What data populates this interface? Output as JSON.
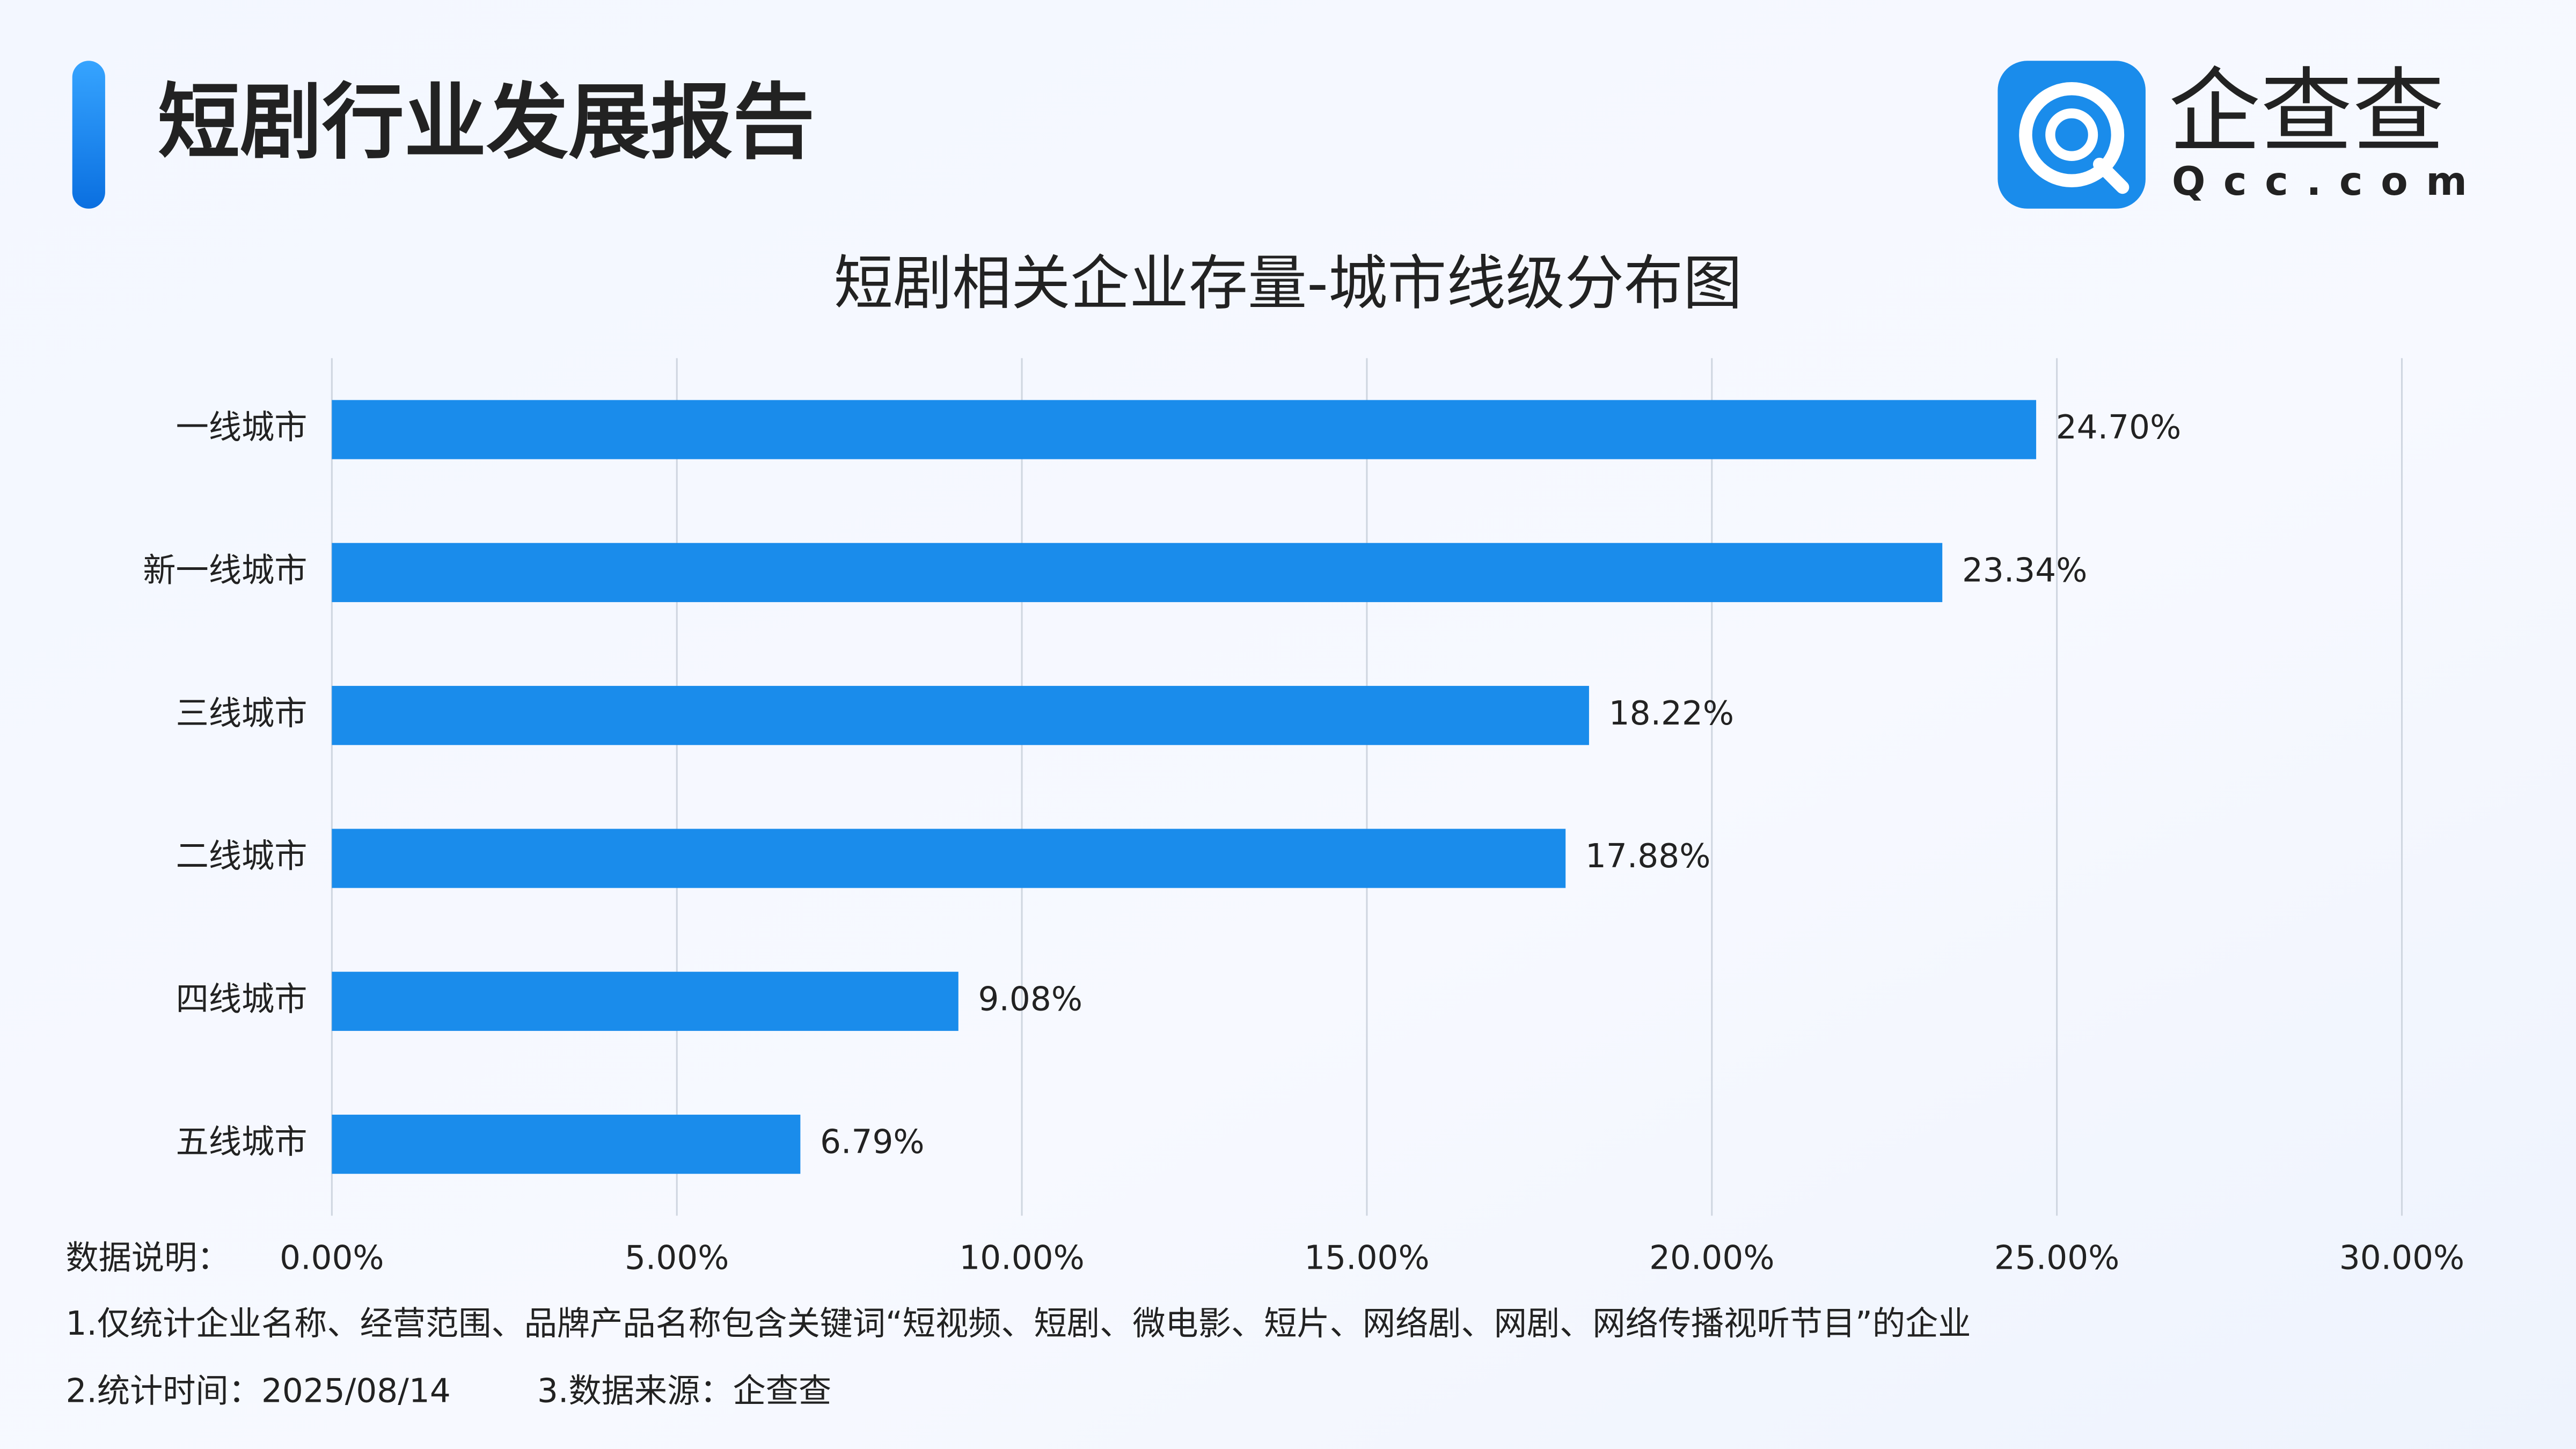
{
  "header": {
    "title": "短剧行业发展报告",
    "logo_text": "企查查",
    "logo_sub": "Qcc.com"
  },
  "chart_data": {
    "type": "bar",
    "orientation": "horizontal",
    "title": "短剧相关企业存量-城市线级分布图",
    "categories": [
      "一线城市",
      "新一线城市",
      "三线城市",
      "二线城市",
      "四线城市",
      "五线城市"
    ],
    "values": [
      24.7,
      23.34,
      18.22,
      17.88,
      9.08,
      6.79
    ],
    "value_labels": [
      "24.70%",
      "23.34%",
      "18.22%",
      "17.88%",
      "9.08%",
      "6.79%"
    ],
    "color": "#1a8ceb",
    "xlim": [
      0,
      30
    ],
    "xticks": [
      {
        "value": 0,
        "label": "0.00%"
      },
      {
        "value": 5,
        "label": "5.00%"
      },
      {
        "value": 10,
        "label": "10.00%"
      },
      {
        "value": 15,
        "label": "15.00%"
      },
      {
        "value": 20,
        "label": "20.00%"
      },
      {
        "value": 25,
        "label": "25.00%"
      },
      {
        "value": 30,
        "label": "30.00%"
      }
    ],
    "grid": true
  },
  "notes": {
    "label": "数据说明：",
    "line1": "1.仅统计企业名称、经营范围、品牌产品名称包含关键词“短视频、短剧、微电影、短片、网络剧、网剧、网络传播视听节目”的企业",
    "time": "2.统计时间：2025/08/14",
    "source": "3.数据来源：企查查"
  }
}
